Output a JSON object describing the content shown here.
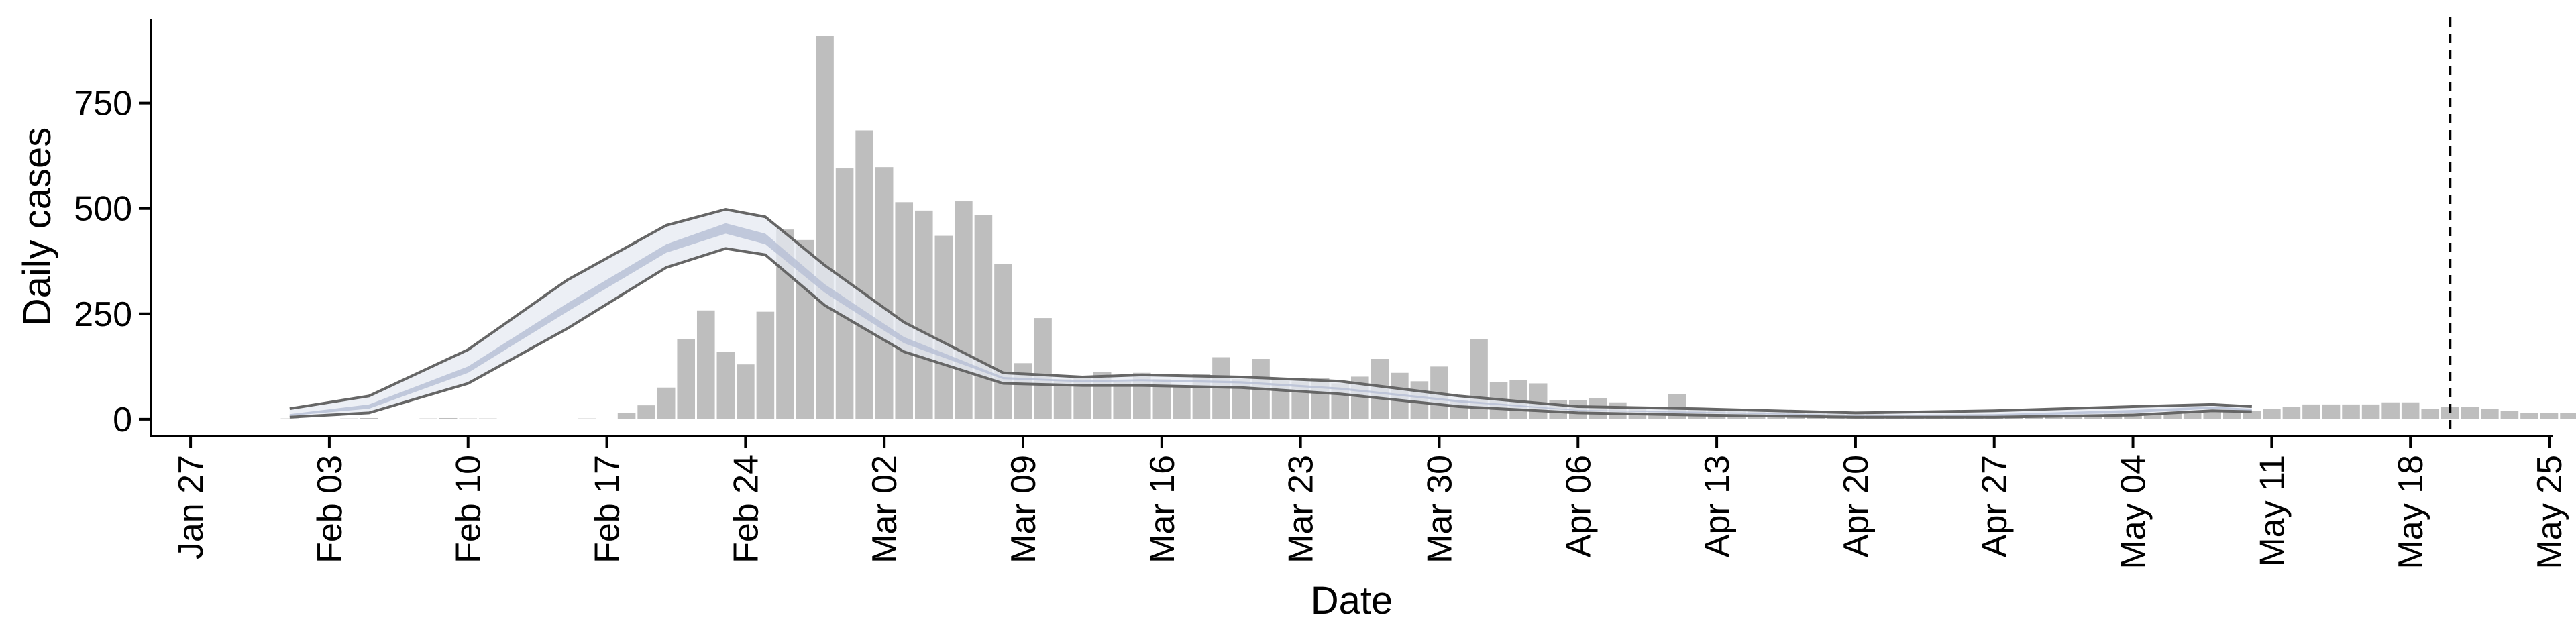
{
  "chart_data": {
    "type": "bar",
    "xlabel": "Date",
    "ylabel": "Daily cases",
    "xlim": [
      "2020-01-25",
      "2020-05-25"
    ],
    "ylim": [
      -40,
      950
    ],
    "x_ticks": [
      "2020-01-27",
      "2020-02-03",
      "2020-02-10",
      "2020-02-17",
      "2020-02-24",
      "2020-03-02",
      "2020-03-09",
      "2020-03-16",
      "2020-03-23",
      "2020-03-30",
      "2020-04-06",
      "2020-04-13",
      "2020-04-20",
      "2020-04-27",
      "2020-05-04",
      "2020-05-11",
      "2020-05-18",
      "2020-05-25"
    ],
    "x_tick_labels": [
      "Jan 27",
      "Feb 03",
      "Feb 10",
      "Feb 17",
      "Feb 24",
      "Mar 02",
      "Mar 09",
      "Mar 16",
      "Mar 23",
      "Mar 30",
      "Apr 06",
      "Apr 13",
      "Apr 20",
      "Apr 27",
      "May 04",
      "May 11",
      "May 18",
      "May 25"
    ],
    "y_ticks": [
      0,
      250,
      500,
      750
    ],
    "y_tick_labels": [
      "0",
      "250",
      "500",
      "750"
    ],
    "grid": false,
    "colors": {
      "bars": "#bebebe",
      "ribbon_outer": "#e6e9f1",
      "ribbon_inner": "#b9c1d6",
      "bound_lines": "#666666",
      "vline": "#000000"
    },
    "daily_cases": {
      "start": "2020-01-31",
      "values": [
        1,
        2,
        1,
        1,
        2,
        3,
        1,
        1,
        2,
        3,
        2,
        2,
        1,
        1,
        1,
        1,
        2,
        1,
        15,
        33,
        75,
        190,
        258,
        160,
        130,
        255,
        450,
        425,
        910,
        595,
        685,
        598,
        515,
        495,
        435,
        517,
        484,
        368,
        133,
        240,
        95,
        100,
        112,
        90,
        110,
        95,
        80,
        108,
        147,
        95,
        143,
        95,
        90,
        97,
        85,
        101,
        143,
        110,
        90,
        125,
        45,
        190,
        88,
        93,
        85,
        45,
        45,
        50,
        40,
        30,
        20,
        60,
        25,
        25,
        20,
        20,
        15,
        15,
        15,
        20,
        15,
        15,
        10,
        10,
        10,
        10,
        12,
        12,
        10,
        10,
        10,
        12,
        12,
        15,
        15,
        15,
        15,
        15,
        20,
        20,
        20,
        25,
        30,
        35,
        35,
        35,
        35,
        40,
        40,
        25,
        30,
        30,
        25,
        20,
        15,
        15,
        15,
        30
      ]
    },
    "estimate_interval": {
      "dates": [
        "2020-02-01",
        "2020-02-05",
        "2020-02-10",
        "2020-02-15",
        "2020-02-20",
        "2020-02-23",
        "2020-02-25",
        "2020-02-28",
        "2020-03-03",
        "2020-03-08",
        "2020-03-12",
        "2020-03-15",
        "2020-03-20",
        "2020-03-25",
        "2020-03-31",
        "2020-04-06",
        "2020-04-12",
        "2020-04-20",
        "2020-04-27",
        "2020-05-04",
        "2020-05-08",
        "2020-05-10"
      ],
      "upper": [
        25,
        55,
        165,
        330,
        460,
        498,
        480,
        365,
        230,
        110,
        100,
        105,
        100,
        90,
        55,
        30,
        25,
        15,
        20,
        30,
        35,
        30
      ],
      "lower": [
        5,
        15,
        85,
        215,
        360,
        405,
        390,
        270,
        160,
        85,
        80,
        80,
        75,
        60,
        30,
        15,
        10,
        5,
        5,
        10,
        20,
        18
      ],
      "median_upper": [
        12,
        35,
        125,
        275,
        415,
        465,
        440,
        320,
        195,
        100,
        92,
        95,
        90,
        75,
        45,
        22,
        18,
        10,
        12,
        22,
        30,
        25
      ],
      "median_lower": [
        8,
        25,
        110,
        255,
        395,
        440,
        415,
        300,
        180,
        95,
        88,
        90,
        85,
        70,
        40,
        20,
        15,
        8,
        8,
        15,
        25,
        20
      ]
    },
    "vline_date": "2020-05-20"
  }
}
